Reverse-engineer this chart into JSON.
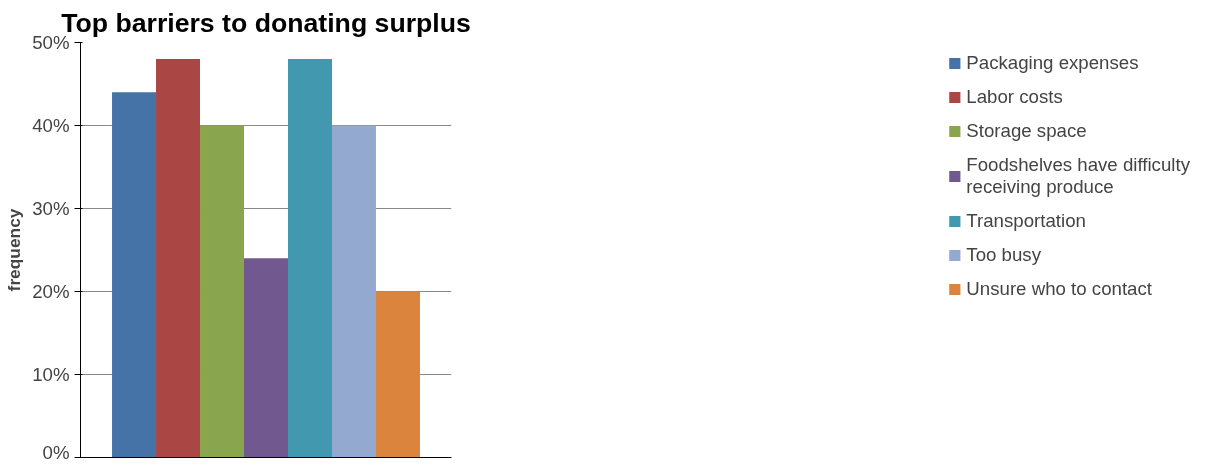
{
  "chart_data": {
    "type": "bar",
    "title": "Top barriers to donating surplus",
    "ylabel": "frequency",
    "categories": [
      null
    ],
    "series": [
      {
        "name": "Packaging expenses",
        "color": "#4572a7",
        "values": [
          44
        ]
      },
      {
        "name": "Labor costs",
        "color": "#aa4643",
        "values": [
          48
        ]
      },
      {
        "name": "Storage space",
        "color": "#89a54e",
        "values": [
          40
        ]
      },
      {
        "name": "Foodshelves have difficulty receiving produce",
        "color": "#71588f",
        "values": [
          24
        ]
      },
      {
        "name": "Transportation",
        "color": "#4198af",
        "values": [
          48
        ]
      },
      {
        "name": "Too busy",
        "color": "#93a9cf",
        "values": [
          40
        ]
      },
      {
        "name": "Unsure who to contact",
        "color": "#db843d",
        "values": [
          20
        ]
      }
    ],
    "ylim": [
      0,
      50
    ],
    "yticks": [
      {
        "value": 0,
        "label": "0%"
      },
      {
        "value": 10,
        "label": "10%"
      },
      {
        "value": 20,
        "label": "20%"
      },
      {
        "value": 30,
        "label": "30%"
      },
      {
        "value": 40,
        "label": "40%"
      },
      {
        "value": 50,
        "label": "50%"
      }
    ],
    "grid": "y",
    "legend": "right"
  }
}
